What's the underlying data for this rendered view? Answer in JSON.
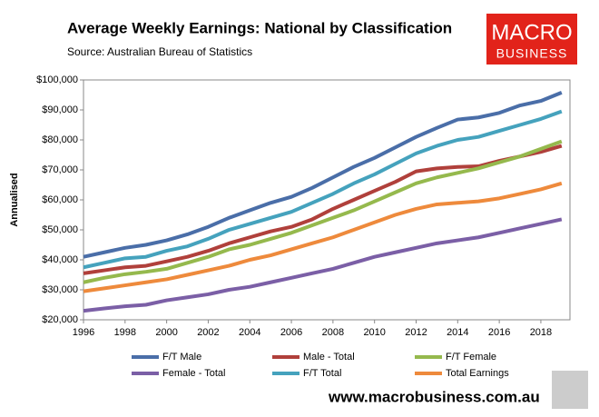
{
  "chart_data": {
    "type": "line",
    "title": "Average Weekly Earnings: National by Classification",
    "subtitle": "Source: Australian Bureau of Statistics",
    "y_label": "Annualised",
    "x": [
      1996,
      1997,
      1998,
      1999,
      2000,
      2001,
      2002,
      2003,
      2004,
      2005,
      2006,
      2007,
      2008,
      2009,
      2010,
      2011,
      2012,
      2013,
      2014,
      2015,
      2016,
      2017,
      2018,
      2019
    ],
    "series": [
      {
        "name": "F/T Male",
        "color": "#4a6ea8",
        "values": [
          41000,
          42500,
          44000,
          45000,
          46500,
          48500,
          51000,
          54000,
          56500,
          59000,
          61000,
          64000,
          67500,
          71000,
          74000,
          77500,
          81000,
          84000,
          86800,
          87500,
          89000,
          91500,
          93000,
          95800
        ]
      },
      {
        "name": "Male - Total",
        "color": "#b0403b",
        "values": [
          35500,
          36500,
          37500,
          38000,
          39500,
          41000,
          43000,
          45500,
          47500,
          49500,
          51000,
          53500,
          57000,
          60000,
          63000,
          66000,
          69500,
          70500,
          71000,
          71200,
          73000,
          74500,
          76000,
          78000
        ]
      },
      {
        "name": "F/T Female",
        "color": "#95b94d",
        "values": [
          32500,
          34000,
          35200,
          36000,
          37000,
          39000,
          41000,
          43500,
          45000,
          47000,
          49000,
          51500,
          54000,
          56500,
          59500,
          62500,
          65500,
          67500,
          69000,
          70500,
          72500,
          74500,
          77000,
          79500
        ]
      },
      {
        "name": "Female - Total",
        "color": "#7b5fa6",
        "values": [
          23000,
          23800,
          24500,
          25000,
          26500,
          27500,
          28500,
          30000,
          31000,
          32500,
          34000,
          35500,
          37000,
          39000,
          41000,
          42500,
          44000,
          45500,
          46500,
          47500,
          49000,
          50500,
          52000,
          53500
        ]
      },
      {
        "name": "F/T Total",
        "color": "#45a2bd",
        "values": [
          37500,
          39000,
          40500,
          41000,
          43000,
          44500,
          47000,
          50000,
          52000,
          54000,
          56000,
          59000,
          62000,
          65500,
          68500,
          72000,
          75500,
          78000,
          80000,
          81000,
          83000,
          85000,
          87000,
          89500
        ]
      },
      {
        "name": "Total Earnings",
        "color": "#ee8a3c",
        "values": [
          29500,
          30500,
          31500,
          32500,
          33500,
          35000,
          36500,
          38000,
          40000,
          41500,
          43500,
          45500,
          47500,
          50000,
          52500,
          55000,
          57000,
          58500,
          59000,
          59500,
          60500,
          62000,
          63500,
          65500
        ]
      }
    ],
    "xlim": [
      1996,
      2019.4
    ],
    "xticks": [
      1996,
      1998,
      2000,
      2002,
      2004,
      2006,
      2008,
      2010,
      2012,
      2014,
      2016,
      2018
    ],
    "ylim": [
      20000,
      100000
    ],
    "yticks": [
      {
        "value": 20000,
        "label": "$20,000"
      },
      {
        "value": 30000,
        "label": "$30,000"
      },
      {
        "value": 40000,
        "label": "$40,000"
      },
      {
        "value": 50000,
        "label": "$50,000"
      },
      {
        "value": 60000,
        "label": "$60,000"
      },
      {
        "value": 70000,
        "label": "$70,000"
      },
      {
        "value": 80000,
        "label": "$80,000"
      },
      {
        "value": 90000,
        "label": "$90,000"
      },
      {
        "value": 100000,
        "label": "$100,000"
      }
    ],
    "grid": false,
    "legend": "bottom"
  },
  "logo": {
    "line1": "MACRO",
    "line2": "BUSINESS"
  },
  "website": "www.macrobusiness.com.au"
}
